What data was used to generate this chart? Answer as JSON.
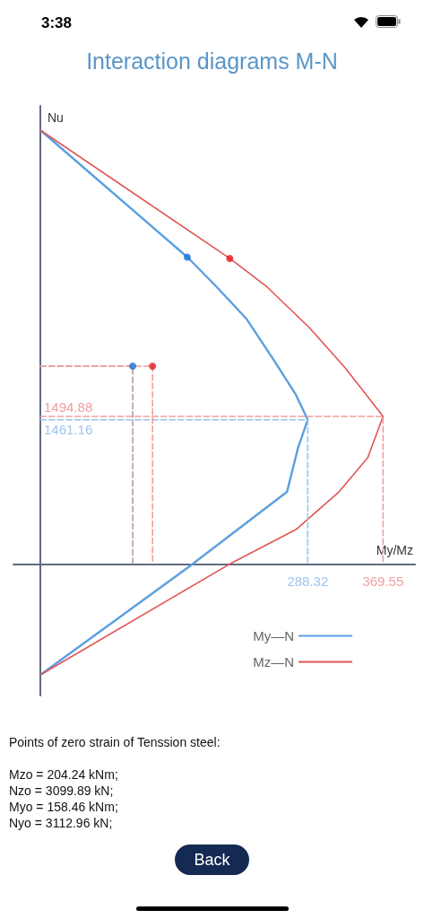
{
  "chart_data": {
    "type": "line",
    "title": "Interaction diagrams M-N",
    "xlabel": "My/Mz",
    "ylabel": "Nu",
    "xlim": [
      -29,
      404
    ],
    "ylim": [
      -1340,
      4649
    ],
    "xticks": [
      288.32,
      369.55
    ],
    "tick_labels": "x",
    "legend": "bottom right",
    "marker": "none",
    "series": [
      {
        "name": "My—N",
        "color": "#5a9fe0",
        "line_style": "solid",
        "x": [
          0,
          158.46,
          188.6,
          222,
          251,
          275.6,
          288.32,
          277.6,
          266,
          212.8,
          159.6,
          0
        ],
        "values": [
          4403,
          3112.96,
          2826,
          2489,
          2078,
          1714,
          1461.16,
          1167,
          729,
          346,
          -36,
          -1130
        ]
      },
      {
        "name": "Mz—N",
        "color": "#e05555",
        "line_style": "solid",
        "x": [
          0,
          204.24,
          244.7,
          290,
          328.8,
          369.55,
          353,
          322,
          275.6,
          205,
          0
        ],
        "values": [
          4403,
          3099.89,
          2808,
          2397,
          1987,
          1494.88,
          1076,
          729,
          346,
          0,
          -1130
        ]
      },
      {
        "type": "line",
        "color": "#9cc4ec",
        "line_style": "dashed",
        "x": [
          0,
          288.32,
          288.32
        ],
        "values": [
          1461.16,
          1461.16,
          0
        ],
        "value_labels": [
          "1461.16",
          null,
          null
        ]
      },
      {
        "type": "line",
        "color": "#f0a0a0",
        "line_style": "dashed",
        "x": [
          0,
          369.55,
          369.55
        ],
        "values": [
          1494.88,
          1494.88,
          0
        ],
        "value_labels": [
          "1494.88",
          null,
          null
        ]
      },
      {
        "type": "line",
        "color": "#b89aa8",
        "line_style": "dashed",
        "x": [
          0,
          99.6,
          99.6
        ],
        "values": [
          2005,
          2005,
          0
        ]
      },
      {
        "type": "line",
        "color": "#f0a0a0",
        "line_style": "dashed",
        "x": [
          0,
          121,
          121
        ],
        "values": [
          2005,
          2005,
          0
        ]
      },
      {
        "type": "scatter",
        "color": "#1a6fd0",
        "marker": "circle",
        "x": [
          158.46,
          99.6
        ],
        "values": [
          3112.96,
          2005
        ]
      },
      {
        "type": "scatter",
        "color": "#e01a1a",
        "marker": "circle",
        "x": [
          204.24,
          121
        ],
        "values": [
          3099.89,
          2005
        ]
      }
    ],
    "annotations": [
      "3:38",
      "Points of zero strain of Tenssion steel:",
      "Mzo = 204.24 kNm;",
      "Nzo = 3099.89 kN;",
      "Myo = 158.46 kNm;",
      "Nyo = 3112.96 kN;",
      "Back"
    ]
  }
}
